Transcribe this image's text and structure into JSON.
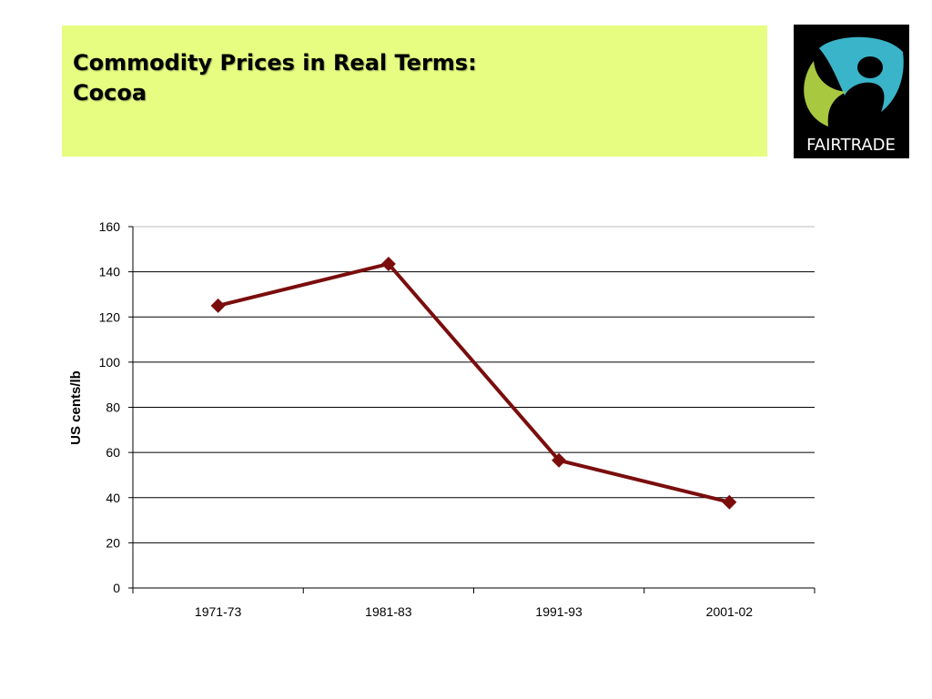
{
  "slide": {
    "title_line1": "Commodity Prices in Real Terms:",
    "title_line2": "Cocoa"
  },
  "logo": {
    "text": "FAIRTRADE",
    "colors": {
      "background": "#000000",
      "blue": "#3ab4c8",
      "green": "#a8c840",
      "text": "#ffffff"
    }
  },
  "colors": {
    "title_background": "#e6fd82",
    "series": "#7b0d0d"
  },
  "chart_data": {
    "type": "line",
    "categories": [
      "1971-73",
      "1981-83",
      "1991-93",
      "2001-02"
    ],
    "values": [
      125,
      143.5,
      56.5,
      38
    ],
    "ylabel": "US cents/lb",
    "xlabel": "",
    "ylim": [
      0,
      160
    ],
    "yticks": [
      0,
      20,
      40,
      60,
      80,
      100,
      120,
      140,
      160
    ],
    "grid": true,
    "marker": "diamond",
    "legend": "none"
  }
}
